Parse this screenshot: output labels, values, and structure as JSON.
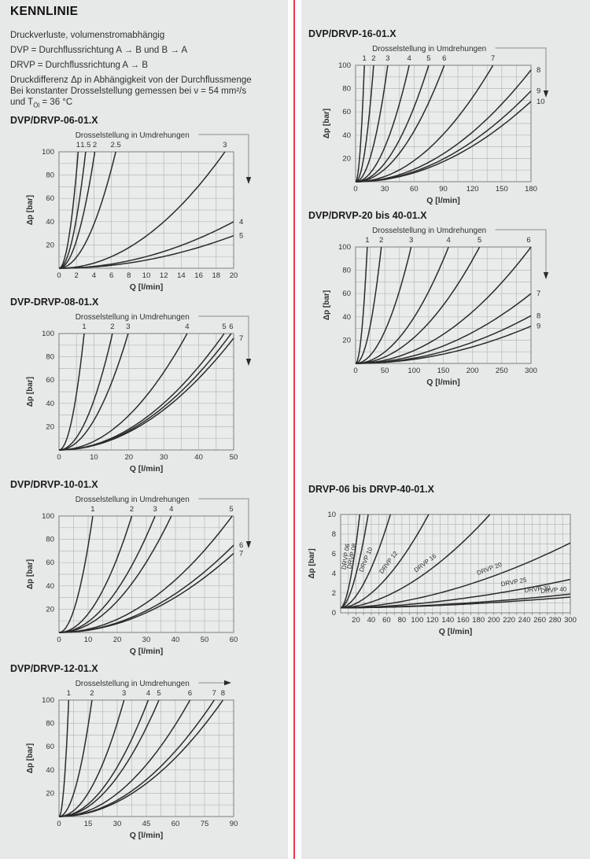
{
  "page": {
    "background": "#e7e8e8",
    "divider_color": "#ee3a4d",
    "grid_color": "#b8baba",
    "plot_border_color": "#7c7e7e",
    "curve_color": "#2b2b2b",
    "plot_fill": "#eaebeb"
  },
  "header": {
    "title": "KENNLINIE"
  },
  "intro": {
    "lines": [
      "Druckverluste, volumenstromabhängig",
      "DVP = Durchflussrichtung A → B und B → A",
      "DRVP = Durchflussrichtung A → B",
      "Druckdifferenz Δp in Abhängigkeit von der Durchflussmenge",
      "Bei konstanter Drosselstellung gemessen bei ν = 54 mm²/s"
    ],
    "last_line": {
      "pre": "und T",
      "sub": "Öl",
      "post": " = 36 °C"
    }
  },
  "chart_data": [
    {
      "id": "dvp-drvp-06-01x",
      "type": "line",
      "title": "DVP/DRVP-06-01.X",
      "legend": "Drosselstellung in Umdrehungen",
      "arrow": "down",
      "xlabel": "Q [l/min]",
      "ylabel": "Δp [bar]",
      "xlim": [
        0,
        20
      ],
      "ylim": [
        0,
        100
      ],
      "xticks": [
        0,
        2,
        4,
        6,
        8,
        10,
        12,
        14,
        16,
        18,
        20
      ],
      "yticks": [
        20,
        40,
        60,
        80,
        100
      ],
      "xgrid_step": 2,
      "ygrid_step": 10,
      "exponent": 2,
      "y0": 0,
      "curves": [
        {
          "label": "1",
          "end": [
            2.2,
            100
          ]
        },
        {
          "label": "1.5",
          "end": [
            3.05,
            100
          ]
        },
        {
          "label": "2",
          "end": [
            4.1,
            100
          ]
        },
        {
          "label": "2.5",
          "end": [
            6.5,
            100
          ]
        },
        {
          "label": "3",
          "end": [
            19,
            100
          ]
        },
        {
          "label": "4",
          "end": [
            20,
            40
          ]
        },
        {
          "label": "5",
          "end": [
            20,
            28
          ]
        }
      ],
      "layout": {
        "svg": [
          345,
          210
        ],
        "plot": [
          62,
          30,
          222,
          148
        ]
      }
    },
    {
      "id": "dvp-drvp-08-01x",
      "type": "line",
      "title": "DVP-DRVP-08-01.X",
      "legend": "Drosselstellung in Umdrehungen",
      "arrow": "down",
      "xlabel": "Q [l/min]",
      "ylabel": "Δp [bar]",
      "xlim": [
        0,
        50
      ],
      "ylim": [
        0,
        100
      ],
      "xticks": [
        0,
        10,
        20,
        30,
        40,
        50
      ],
      "yticks": [
        20,
        40,
        60,
        80,
        100
      ],
      "xgrid_step": 5,
      "ygrid_step": 10,
      "exponent": 2,
      "y0": 0,
      "curves": [
        {
          "label": "1",
          "end": [
            7.2,
            100
          ]
        },
        {
          "label": "2",
          "end": [
            15.3,
            100
          ]
        },
        {
          "label": "3",
          "end": [
            19.8,
            100
          ]
        },
        {
          "label": "4",
          "end": [
            36.7,
            100
          ]
        },
        {
          "label": "5",
          "end": [
            47.3,
            100
          ]
        },
        {
          "label": "6",
          "end": [
            49.3,
            100
          ]
        },
        {
          "label": "7",
          "end": [
            50,
            96
          ]
        }
      ],
      "layout": {
        "svg": [
          345,
          210
        ],
        "plot": [
          62,
          30,
          222,
          148
        ]
      }
    },
    {
      "id": "dvp-drvp-10-01x",
      "type": "line",
      "title": "DVP/DRVP-10-01.X",
      "legend": "Drosselstellung in Umdrehungen",
      "arrow": "down",
      "xlabel": "Q [l/min]",
      "ylabel": "Δp [bar]",
      "xlim": [
        0,
        60
      ],
      "ylim": [
        0,
        100
      ],
      "xticks": [
        0,
        10,
        20,
        30,
        40,
        50,
        60
      ],
      "yticks": [
        20,
        40,
        60,
        80,
        100
      ],
      "xgrid_step": 5,
      "ygrid_step": 10,
      "exponent": 2,
      "y0": 0,
      "curves": [
        {
          "label": "1",
          "end": [
            11.6,
            100
          ]
        },
        {
          "label": "2",
          "end": [
            25,
            100
          ]
        },
        {
          "label": "3",
          "end": [
            33,
            100
          ]
        },
        {
          "label": "4",
          "end": [
            38.6,
            100
          ]
        },
        {
          "label": "5",
          "end": [
            59.5,
            100
          ]
        },
        {
          "label": "6",
          "end": [
            60,
            75
          ]
        },
        {
          "label": "7",
          "end": [
            60,
            68
          ]
        }
      ],
      "layout": {
        "svg": [
          345,
          210
        ],
        "plot": [
          62,
          30,
          222,
          148
        ]
      }
    },
    {
      "id": "dvp-drvp-12-01x",
      "type": "line",
      "title": "DVP/DRVP-12-01.X",
      "legend": "Drosselstellung in Umdrehungen",
      "arrow": "right",
      "xlabel": "Q [l/min]",
      "ylabel": "Δp [bar]",
      "xlim": [
        0,
        90
      ],
      "ylim": [
        0,
        100
      ],
      "xticks": [
        0,
        15,
        30,
        45,
        60,
        75,
        90
      ],
      "yticks": [
        20,
        40,
        60,
        80,
        100
      ],
      "xgrid_step": 7.5,
      "ygrid_step": 10,
      "exponent": 2,
      "y0": 0,
      "curves": [
        {
          "label": "1",
          "end": [
            5,
            100
          ]
        },
        {
          "label": "2",
          "end": [
            17,
            100
          ]
        },
        {
          "label": "3",
          "end": [
            33.5,
            100
          ]
        },
        {
          "label": "4",
          "end": [
            46,
            100
          ]
        },
        {
          "label": "5",
          "end": [
            51.5,
            100
          ]
        },
        {
          "label": "6",
          "end": [
            67.5,
            100
          ]
        },
        {
          "label": "7",
          "end": [
            80,
            100
          ]
        },
        {
          "label": "8",
          "end": [
            84.5,
            100
          ]
        }
      ],
      "layout": {
        "svg": [
          345,
          210
        ],
        "plot": [
          62,
          30,
          222,
          148
        ]
      }
    },
    {
      "id": "dvp-drvp-16-01x",
      "type": "line",
      "title": "DVP/DRVP-16-01.X",
      "legend": "Drosselstellung in Umdrehungen",
      "arrow": "down",
      "xlabel": "Q [l/min]",
      "ylabel": "Δp [bar]",
      "xlim": [
        0,
        180
      ],
      "ylim": [
        0,
        100
      ],
      "xticks": [
        0,
        30,
        60,
        90,
        120,
        150,
        180
      ],
      "yticks": [
        20,
        40,
        60,
        80,
        100
      ],
      "xgrid_step": 15,
      "ygrid_step": 10,
      "exponent": 2,
      "y0": 0,
      "curves": [
        {
          "label": "1",
          "end": [
            9,
            100
          ]
        },
        {
          "label": "2",
          "end": [
            18.5,
            100
          ]
        },
        {
          "label": "3",
          "end": [
            33,
            100
          ]
        },
        {
          "label": "4",
          "end": [
            55,
            100
          ]
        },
        {
          "label": "5",
          "end": [
            75,
            100
          ]
        },
        {
          "label": "6",
          "end": [
            91,
            100
          ]
        },
        {
          "label": "7",
          "end": [
            141,
            100
          ]
        },
        {
          "label": "8",
          "end": [
            180,
            96
          ]
        },
        {
          "label": "9",
          "end": [
            180,
            78
          ]
        },
        {
          "label": "10",
          "end": [
            180,
            69
          ]
        }
      ],
      "layout": {
        "svg": [
          350,
          210
        ],
        "plot": [
          60,
          30,
          223,
          148
        ]
      }
    },
    {
      "id": "dvp-drvp-20-40-01x",
      "type": "line",
      "title": "DVP/DRVP-20 bis 40-01.X",
      "legend": "Drosselstellung in Umdrehungen",
      "arrow": "down",
      "xlabel": "Q [l/min]",
      "ylabel": "Δp [bar]",
      "xlim": [
        0,
        300
      ],
      "ylim": [
        0,
        100
      ],
      "xticks": [
        0,
        50,
        100,
        150,
        200,
        250,
        300
      ],
      "yticks": [
        20,
        40,
        60,
        80,
        100
      ],
      "xgrid_step": 25,
      "ygrid_step": 10,
      "exponent": 2,
      "y0": 0,
      "curves": [
        {
          "label": "1",
          "end": [
            20,
            100
          ]
        },
        {
          "label": "2",
          "end": [
            44,
            100
          ]
        },
        {
          "label": "3",
          "end": [
            95,
            100
          ]
        },
        {
          "label": "4",
          "end": [
            159,
            100
          ]
        },
        {
          "label": "5",
          "end": [
            212,
            100
          ]
        },
        {
          "label": "6",
          "end": [
            300,
            100
          ]
        },
        {
          "label": "7",
          "end": [
            300,
            60
          ]
        },
        {
          "label": "8",
          "end": [
            300,
            41
          ]
        },
        {
          "label": "9",
          "end": [
            300,
            32
          ]
        }
      ],
      "layout": {
        "svg": [
          350,
          210
        ],
        "plot": [
          60,
          30,
          223,
          148
        ]
      }
    },
    {
      "id": "drvp-06-bis-40-01x",
      "type": "line",
      "title": "DRVP-06 bis DRVP-40-01.X",
      "label_mode": "inline",
      "xlabel": "Q [l/min]",
      "ylabel": "Δp [bar]",
      "xlim": [
        0,
        300
      ],
      "ylim": [
        0,
        10
      ],
      "xticks": [
        20,
        40,
        60,
        80,
        100,
        120,
        140,
        160,
        180,
        200,
        220,
        240,
        260,
        280,
        300
      ],
      "yticks": [
        0,
        2,
        4,
        6,
        8,
        10
      ],
      "xgrid_step": 10,
      "ygrid_step": 1,
      "exponent": 1.75,
      "y0": 0.5,
      "curves": [
        {
          "label": "DRVP 06",
          "end": [
            25,
            10
          ],
          "label_t": 0.7
        },
        {
          "label": "DRVP 08",
          "end": [
            36,
            10
          ],
          "label_t": 0.7
        },
        {
          "label": "DRVP 10",
          "end": [
            65,
            10
          ],
          "label_t": 0.66
        },
        {
          "label": "DRVP 12",
          "end": [
            115,
            10
          ],
          "label_t": 0.62
        },
        {
          "label": "DRVP 16",
          "end": [
            195,
            10
          ],
          "label_t": 0.6
        },
        {
          "label": "DRVP 20",
          "end": [
            300,
            7.1
          ],
          "label_t": 0.66
        },
        {
          "label": "DRVP 25",
          "end": [
            300,
            3.4
          ],
          "label_t": 0.76
        },
        {
          "label": "DRVP 30",
          "end": [
            300,
            1.9
          ],
          "label_t": 0.86
        },
        {
          "label": "DRVP 40",
          "end": [
            300,
            1.6
          ],
          "label_t": 0.93
        }
      ],
      "layout": {
        "svg": [
          358,
          190
        ],
        "plot": [
          41,
          22,
          292,
          125
        ]
      }
    }
  ]
}
